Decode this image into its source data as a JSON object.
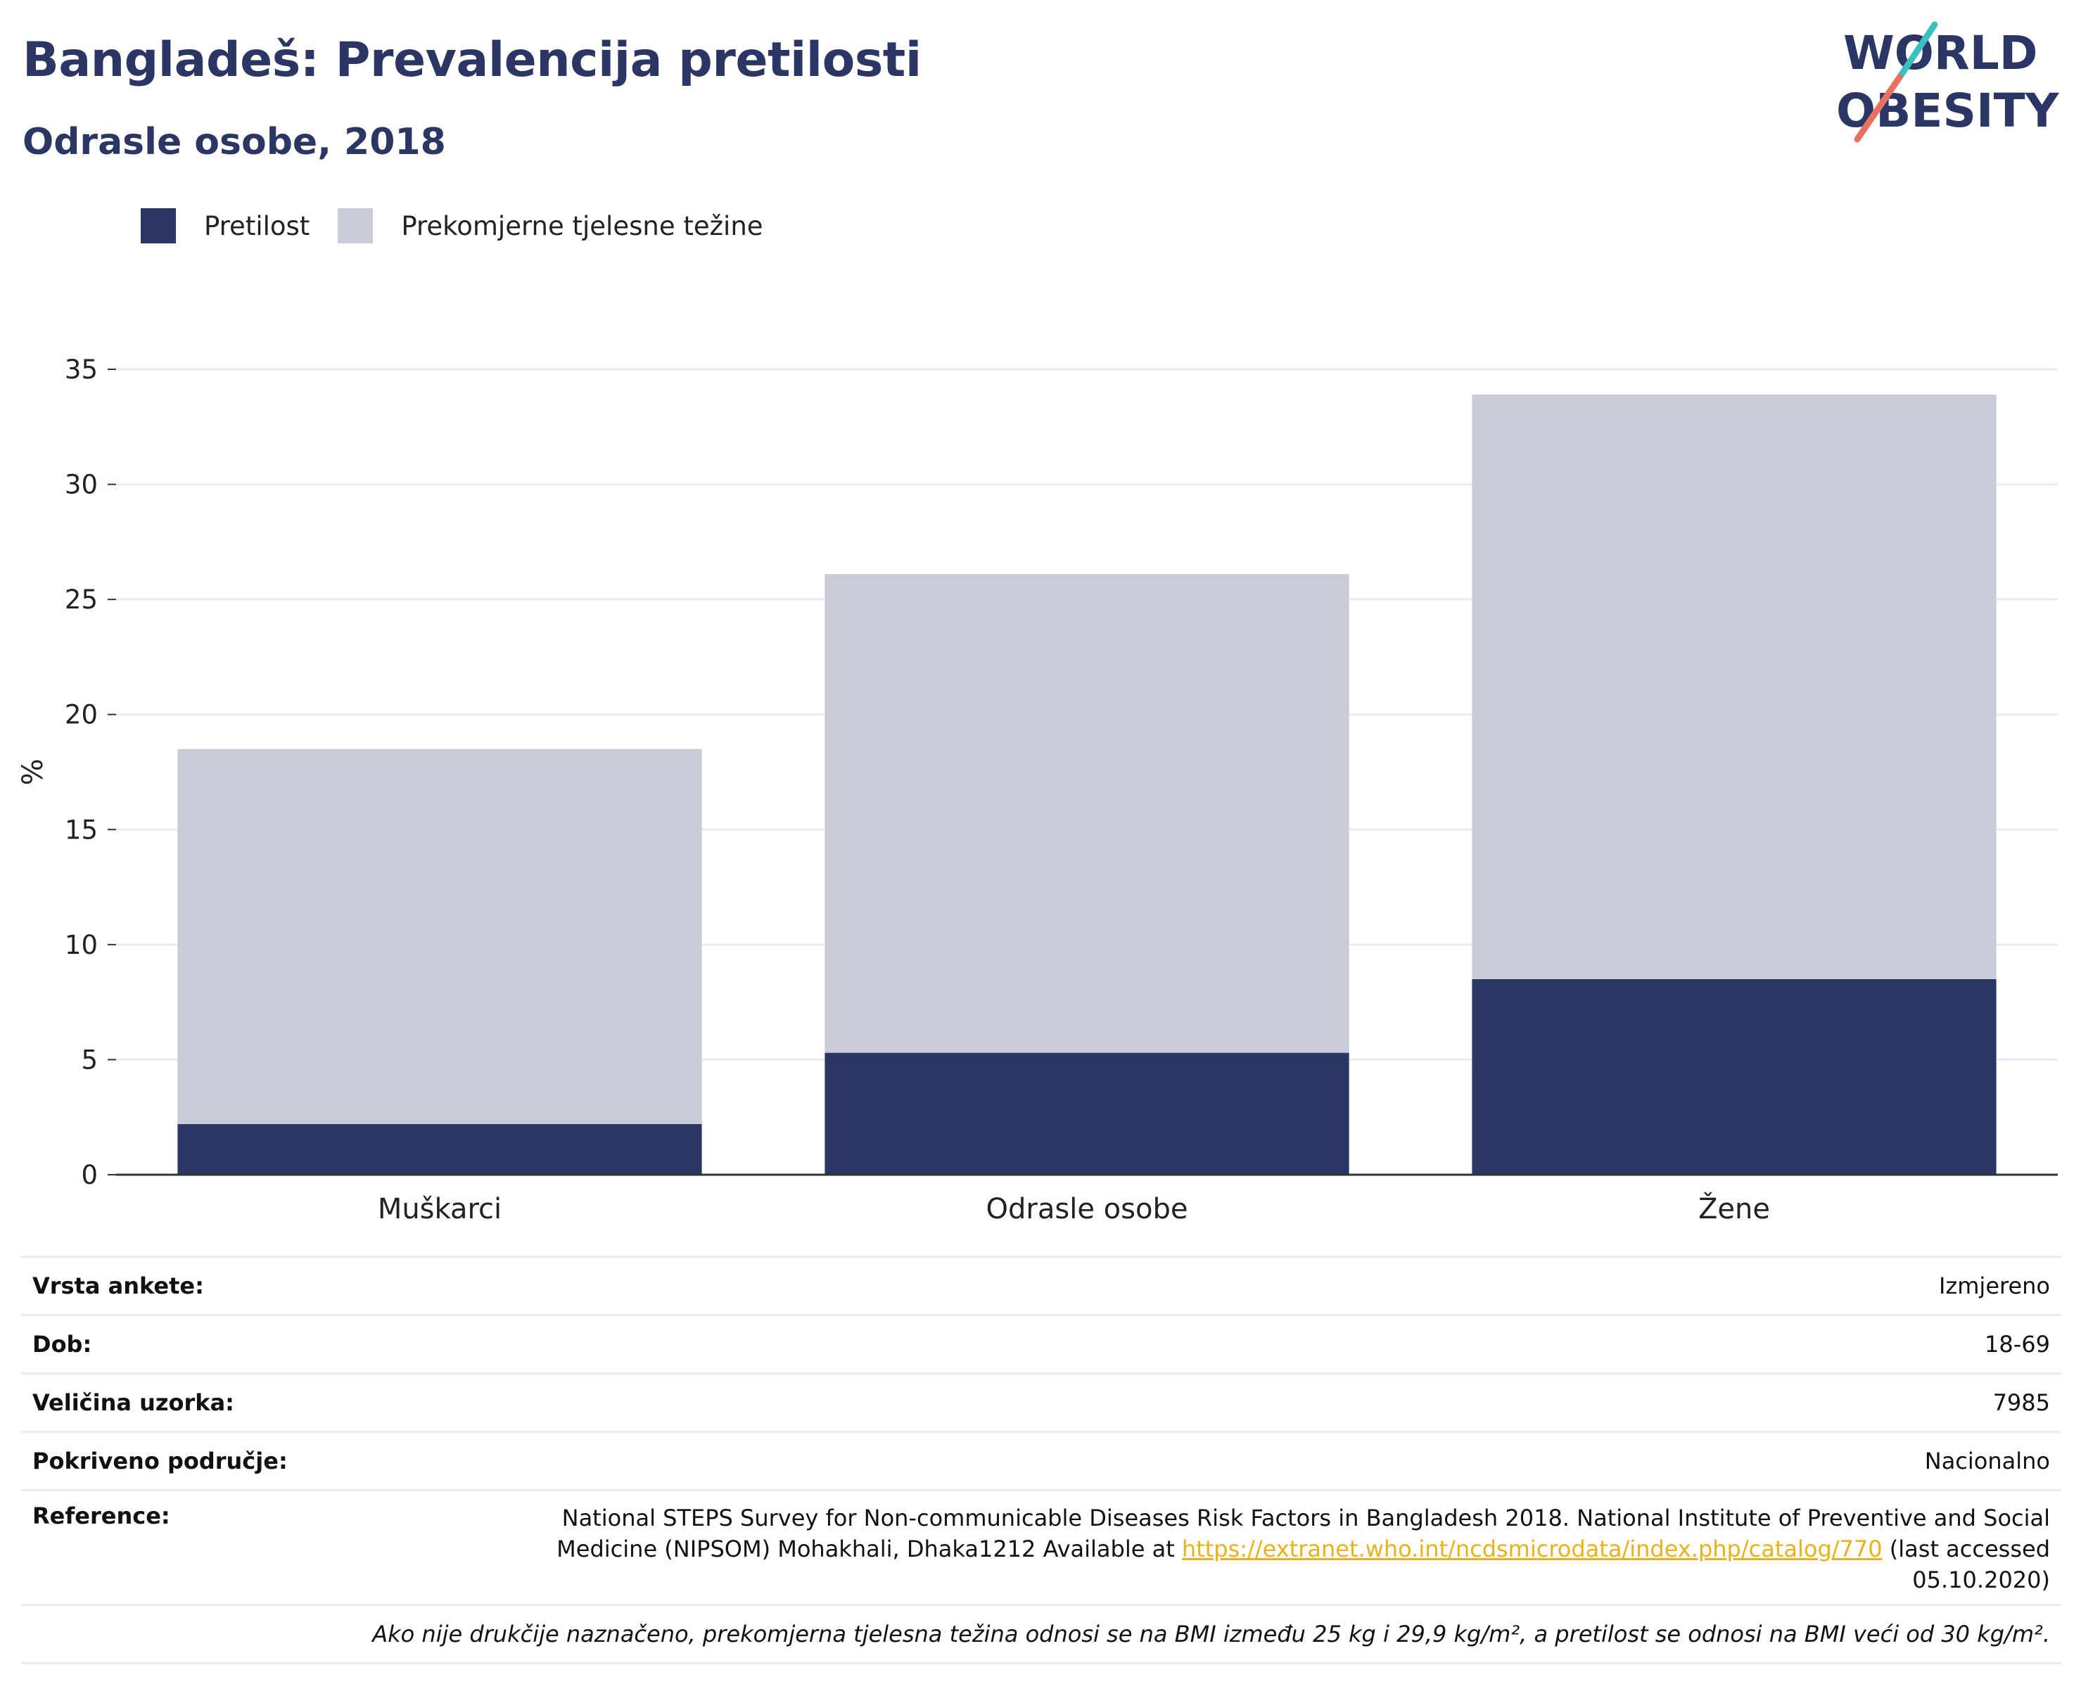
{
  "header": {
    "title": "Bangladeš: Prevalencija pretilosti",
    "subtitle": "Odrasle osobe, 2018"
  },
  "logo": {
    "line1": "WORLD",
    "line2": "OBESITY"
  },
  "colors": {
    "obesity": "#2b3664",
    "overweight": "#c9cbd7",
    "title": "#2b3664",
    "link": "#e8b31a",
    "logo_teal": "#3dbfbf",
    "logo_coral": "#e8725f"
  },
  "legend": {
    "obesity_label": "Pretilost",
    "overweight_label": "Prekomjerne tjelesne težine"
  },
  "chart_data": {
    "type": "bar",
    "stacked": true,
    "categories": [
      "Muškarci",
      "Odrasle osobe",
      "Žene"
    ],
    "series": [
      {
        "name": "Pretilost",
        "values": [
          2.2,
          5.3,
          8.5
        ]
      },
      {
        "name": "Prekomjerne tjelesne težine",
        "values": [
          16.3,
          20.8,
          25.4
        ]
      }
    ],
    "totals": [
      18.5,
      26.1,
      33.9
    ],
    "ylabel": "%",
    "ylim": [
      0,
      35
    ],
    "yticks": [
      "0",
      "5",
      "10",
      "15",
      "20",
      "25",
      "30",
      "35"
    ],
    "grid": true,
    "legend_position": "top-left"
  },
  "info": {
    "survey_type_label": "Vrsta ankete:",
    "survey_type_value": "Izmjereno",
    "age_label": "Dob:",
    "age_value": "18-69",
    "sample_label": "Veličina uzorka:",
    "sample_value": "7985",
    "area_label": "Pokriveno područje:",
    "area_value": "Nacionalno",
    "reference_label": "Reference:",
    "reference_text_before": "National STEPS Survey for Non-communicable Diseases Risk Factors in Bangladesh 2018. National Institute of Preventive and Social Medicine (NIPSOM) Mohakhali, Dhaka1212 Available at ",
    "reference_link": "https://extranet.who.int/ncdsmicrodata/index.php/catalog/770",
    "reference_text_after": " (last accessed 05.10.2020)",
    "footnote": "Ako nije drukčije naznačeno, prekomjerna tjelesna težina odnosi se na BMI između 25 kg i 29,9 kg/m², a pretilost se odnosi na BMI veći od 30 kg/m²."
  }
}
